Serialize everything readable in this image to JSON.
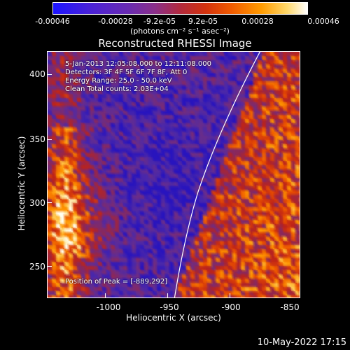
{
  "colorbar": {
    "ticks": [
      "-0.00046",
      "-0.00028",
      "-9.2e-05",
      "9.2e-05",
      "0.00028",
      "0.00046"
    ],
    "unit": "(photons cm⁻² s⁻¹ asec⁻²)"
  },
  "plot": {
    "title": "Reconstructed RHESSI Image",
    "info_lines": [
      "5-Jan-2013 12:05:08.000 to 12:11:08.000",
      "Detectors: 3F 4F 5F 6F 7F 8F, Att 0",
      "Energy Range: 25.0 - 50.0 keV",
      "Clean     Total counts: 2.03E+04"
    ],
    "peak_text": "Position of Peak = [-889,292]",
    "x_ticks": [
      "-1000",
      "-950",
      "-900",
      "-850"
    ],
    "y_ticks": [
      "400",
      "350",
      "300",
      "250"
    ],
    "xlabel": "Heliocentric X (arcsec)",
    "ylabel": "Heliocentric Y (arcsec)"
  },
  "timestamp": "10-May-2022 17:15"
}
